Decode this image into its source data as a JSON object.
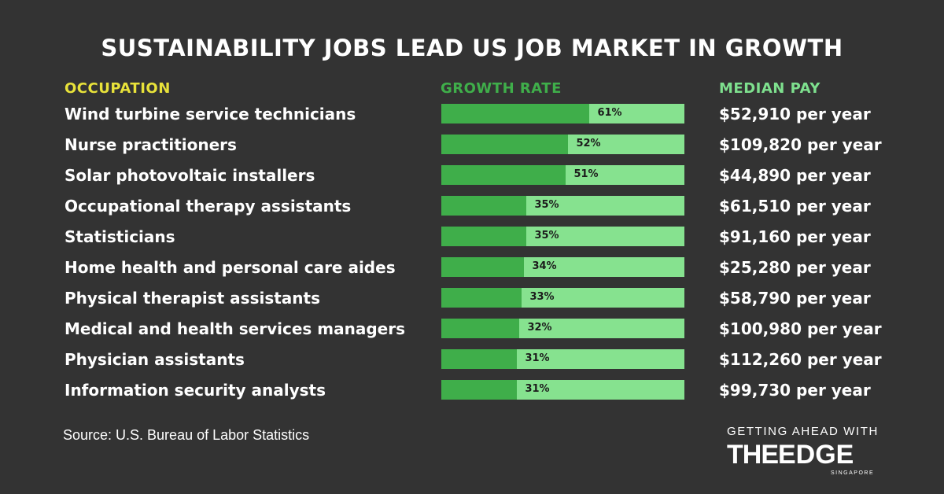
{
  "title": "SUSTAINABILITY JOBS LEAD US JOB MARKET IN GROWTH",
  "headers": {
    "occupation": "OCCUPATION",
    "growth_rate": "GROWTH RATE",
    "median_pay": "MEDIAN PAY"
  },
  "colors": {
    "background": "#333333",
    "bar_fill": "#3fae4a",
    "bar_track": "#86e28f",
    "occupation_header": "#e8e23a",
    "growth_header": "#3fae4a",
    "pay_header": "#7ee08e"
  },
  "chart_data": {
    "type": "bar",
    "orientation": "horizontal",
    "title": "SUSTAINABILITY JOBS LEAD US JOB MARKET IN GROWTH",
    "categories": [
      "Wind turbine service technicians",
      "Nurse practitioners",
      "Solar photovoltaic installers",
      "Occupational therapy assistants",
      "Statisticians",
      "Home health and personal care aides",
      "Physical therapist assistants",
      "Medical and health services managers",
      "Physician assistants",
      "Information security analysts"
    ],
    "values": [
      61,
      52,
      51,
      35,
      35,
      34,
      33,
      32,
      31,
      31
    ],
    "value_labels": [
      "61%",
      "52%",
      "51%",
      "35%",
      "35%",
      "34%",
      "33%",
      "32%",
      "31%",
      "31%"
    ],
    "median_pay": [
      "$52,910 per year",
      "$109,820 per year",
      "$44,890 per year",
      "$61,510 per year",
      "$91,160 per year",
      "$25,280 per year",
      "$58,790 per year",
      "$100,980 per year",
      "$112,260 per year",
      "$99,730 per year"
    ],
    "xlim": [
      0,
      100
    ]
  },
  "source": "Source: U.S. Bureau of Labor Statistics",
  "brand": {
    "tagline": "GETTING AHEAD WITH",
    "logo": "THEEDGE",
    "sub": "SINGAPORE"
  }
}
